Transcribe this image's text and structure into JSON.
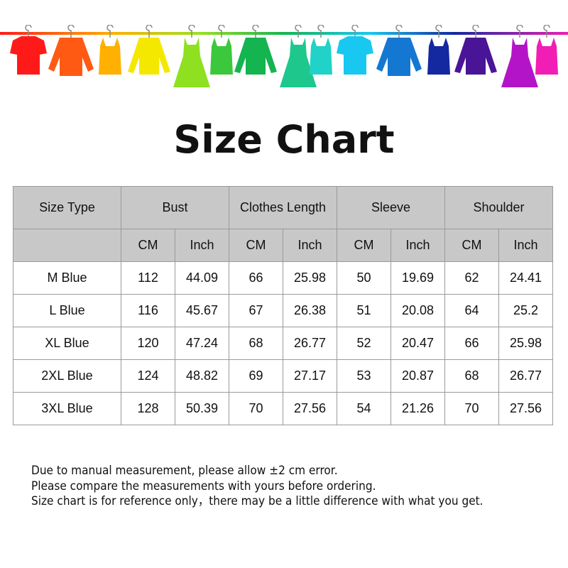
{
  "banner": {
    "icon": "hanging-clothes-rainbow",
    "colors": [
      "#ff1a1a",
      "#ff5a14",
      "#ffb000",
      "#f5e800",
      "#8ee020",
      "#3cc83c",
      "#14b450",
      "#1ec88c",
      "#20d2c8",
      "#18c8f0",
      "#1478d2",
      "#1428a0",
      "#4a1496",
      "#b414c8",
      "#f01eb4"
    ]
  },
  "title": "Size Chart",
  "table": {
    "header_top": [
      "Size Type",
      "Bust",
      "Clothes Length",
      "Sleeve",
      "Shoulder"
    ],
    "header_units": [
      "CM",
      "Inch",
      "CM",
      "Inch",
      "CM",
      "Inch",
      "CM",
      "Inch"
    ],
    "header_bg": "#c8c8c8",
    "rows": [
      [
        "M Blue",
        "112",
        "44.09",
        "66",
        "25.98",
        "50",
        "19.69",
        "62",
        "24.41"
      ],
      [
        "L Blue",
        "116",
        "45.67",
        "67",
        "26.38",
        "51",
        "20.08",
        "64",
        "25.2"
      ],
      [
        "XL Blue",
        "120",
        "47.24",
        "68",
        "26.77",
        "52",
        "20.47",
        "66",
        "25.98"
      ],
      [
        "2XL Blue",
        "124",
        "48.82",
        "69",
        "27.17",
        "53",
        "20.87",
        "68",
        "26.77"
      ],
      [
        "3XL Blue",
        "128",
        "50.39",
        "70",
        "27.56",
        "54",
        "21.26",
        "70",
        "27.56"
      ]
    ]
  },
  "notes": [
    "Due to manual measurement, please allow ±2 cm error.",
    "Please compare the measurements with yours before ordering.",
    "Size chart is for reference only，there may be a little difference with what you get."
  ]
}
